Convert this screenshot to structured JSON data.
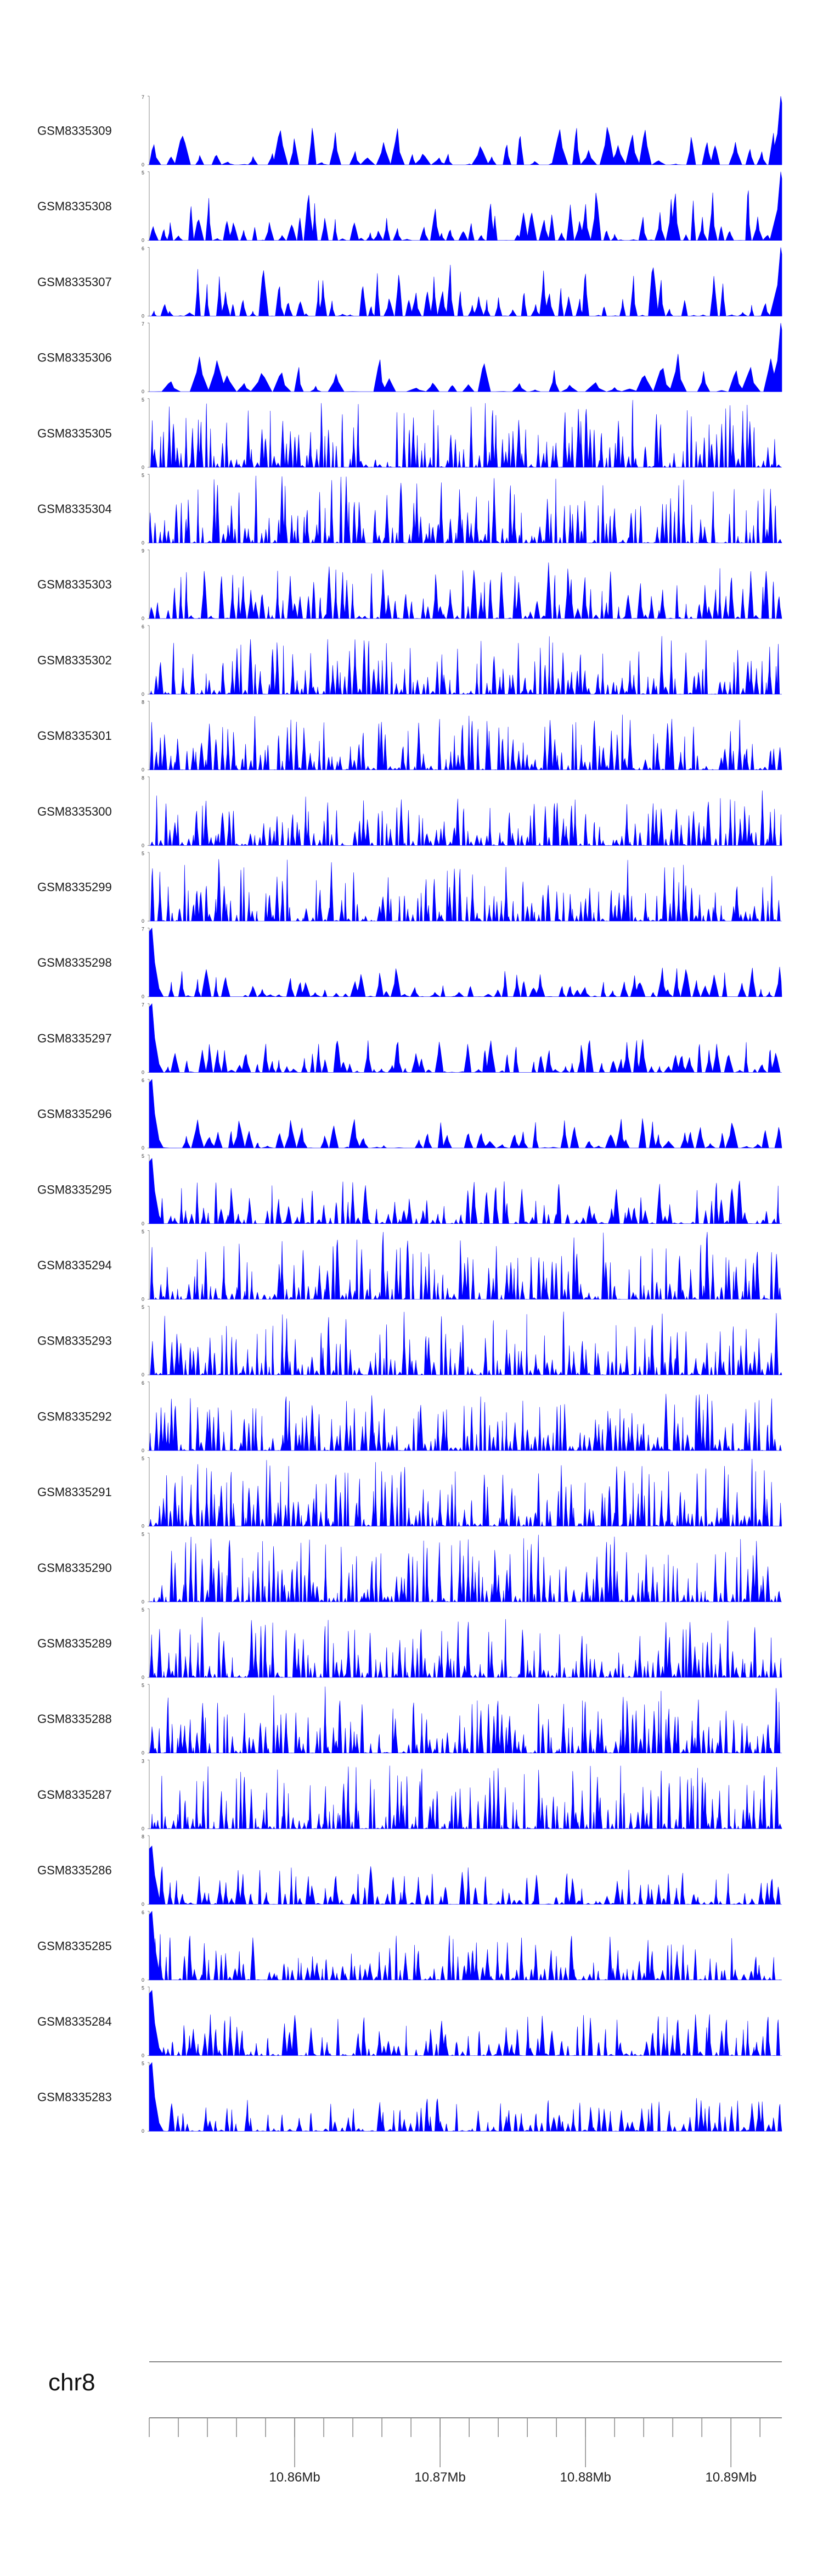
{
  "chart_data": {
    "type": "area",
    "title": "",
    "fill_color": "#0000ff",
    "axis_color": "#888888",
    "chromosome": "chr8",
    "region_mb": [
      10.85,
      10.8935
    ],
    "x_tick_labels": [
      "10.86Mb",
      "10.87Mb",
      "10.88Mb",
      "10.89Mb"
    ],
    "x_tick_values_mb": [
      10.86,
      10.87,
      10.88,
      10.89
    ],
    "tracks": [
      {
        "name": "GSM8335309",
        "ymax": "7",
        "ymin": "0",
        "peak_pos": 1.0,
        "peak_frac": 1.0,
        "n_peaks": 45,
        "intensity": 0.2,
        "seed": 9
      },
      {
        "name": "GSM8335308",
        "ymax": "5",
        "ymin": "0",
        "peak_pos": 1.0,
        "peak_frac": 1.0,
        "n_peaks": 70,
        "intensity": 0.35,
        "seed": 8
      },
      {
        "name": "GSM8335307",
        "ymax": "6",
        "ymin": "0",
        "peak_pos": 1.0,
        "peak_frac": 1.0,
        "n_peaks": 70,
        "intensity": 0.35,
        "seed": 7
      },
      {
        "name": "GSM8335306",
        "ymax": "7",
        "ymin": "0",
        "peak_pos": 1.0,
        "peak_frac": 1.0,
        "n_peaks": 35,
        "intensity": 0.22,
        "seed": 6
      },
      {
        "name": "GSM8335305",
        "ymax": "5",
        "ymin": "0",
        "peak_pos": -1,
        "peak_frac": 0,
        "n_peaks": 150,
        "intensity": 0.6,
        "seed": 5
      },
      {
        "name": "GSM8335304",
        "ymax": "5",
        "ymin": "0",
        "peak_pos": -1,
        "peak_frac": 0,
        "n_peaks": 150,
        "intensity": 0.65,
        "seed": 4
      },
      {
        "name": "GSM8335303",
        "ymax": "9",
        "ymin": "0",
        "peak_pos": -1,
        "peak_frac": 0,
        "n_peaks": 110,
        "intensity": 0.4,
        "seed": 3
      },
      {
        "name": "GSM8335302",
        "ymax": "6",
        "ymin": "0",
        "peak_pos": -1,
        "peak_frac": 0,
        "n_peaks": 140,
        "intensity": 0.45,
        "seed": 2
      },
      {
        "name": "GSM8335301",
        "ymax": "8",
        "ymin": "0",
        "peak_pos": -1,
        "peak_frac": 0,
        "n_peaks": 140,
        "intensity": 0.4,
        "seed": 1
      },
      {
        "name": "GSM8335300",
        "ymax": "8",
        "ymin": "0",
        "peak_pos": -1,
        "peak_frac": 0,
        "n_peaks": 140,
        "intensity": 0.38,
        "seed": 30
      },
      {
        "name": "GSM8335299",
        "ymax": "5",
        "ymin": "0",
        "peak_pos": -1,
        "peak_frac": 0,
        "n_peaks": 150,
        "intensity": 0.45,
        "seed": 29
      },
      {
        "name": "GSM8335298",
        "ymax": "7",
        "ymin": "0",
        "peak_pos": 0.0,
        "peak_frac": 1.0,
        "n_peaks": 70,
        "intensity": 0.1,
        "seed": 28
      },
      {
        "name": "GSM8335297",
        "ymax": "7",
        "ymin": "0",
        "peak_pos": 0.0,
        "peak_frac": 1.0,
        "n_peaks": 80,
        "intensity": 0.14,
        "seed": 27
      },
      {
        "name": "GSM8335296",
        "ymax": "6",
        "ymin": "0",
        "peak_pos": 0.0,
        "peak_frac": 1.0,
        "n_peaks": 60,
        "intensity": 0.14,
        "seed": 26
      },
      {
        "name": "GSM8335295",
        "ymax": "5",
        "ymin": "0",
        "peak_pos": 0.0,
        "peak_frac": 0.95,
        "n_peaks": 110,
        "intensity": 0.28,
        "seed": 25
      },
      {
        "name": "GSM8335294",
        "ymax": "5",
        "ymin": "0",
        "peak_pos": -1,
        "peak_frac": 0,
        "n_peaks": 150,
        "intensity": 0.55,
        "seed": 24
      },
      {
        "name": "GSM8335293",
        "ymax": "5",
        "ymin": "0",
        "peak_pos": -1,
        "peak_frac": 0,
        "n_peaks": 150,
        "intensity": 0.55,
        "seed": 23
      },
      {
        "name": "GSM8335292",
        "ymax": "6",
        "ymin": "0",
        "peak_pos": -1,
        "peak_frac": 0,
        "n_peaks": 150,
        "intensity": 0.5,
        "seed": 22
      },
      {
        "name": "GSM8335291",
        "ymax": "5",
        "ymin": "0",
        "peak_pos": -1,
        "peak_frac": 0,
        "n_peaks": 160,
        "intensity": 0.55,
        "seed": 21
      },
      {
        "name": "GSM8335290",
        "ymax": "5",
        "ymin": "0",
        "peak_pos": -1,
        "peak_frac": 0,
        "n_peaks": 160,
        "intensity": 0.6,
        "seed": 20
      },
      {
        "name": "GSM8335289",
        "ymax": "5",
        "ymin": "0",
        "peak_pos": -1,
        "peak_frac": 0,
        "n_peaks": 150,
        "intensity": 0.5,
        "seed": 19
      },
      {
        "name": "GSM8335288",
        "ymax": "5",
        "ymin": "0",
        "peak_pos": -1,
        "peak_frac": 0,
        "n_peaks": 150,
        "intensity": 0.5,
        "seed": 18
      },
      {
        "name": "GSM8335287",
        "ymax": "3",
        "ymin": "0",
        "peak_pos": -1,
        "peak_frac": 0,
        "n_peaks": 170,
        "intensity": 0.6,
        "seed": 17
      },
      {
        "name": "GSM8335286",
        "ymax": "8",
        "ymin": "0",
        "peak_pos": 0.0,
        "peak_frac": 0.85,
        "n_peaks": 110,
        "intensity": 0.22,
        "seed": 16
      },
      {
        "name": "GSM8335285",
        "ymax": "6",
        "ymin": "0",
        "peak_pos": 0.0,
        "peak_frac": 1.0,
        "n_peaks": 130,
        "intensity": 0.3,
        "seed": 15
      },
      {
        "name": "GSM8335284",
        "ymax": "5",
        "ymin": "0",
        "peak_pos": 0.0,
        "peak_frac": 0.95,
        "n_peaks": 120,
        "intensity": 0.25,
        "seed": 14
      },
      {
        "name": "GSM8335283",
        "ymax": "5",
        "ymin": "0",
        "peak_pos": 0.0,
        "peak_frac": 1.0,
        "n_peaks": 120,
        "intensity": 0.14,
        "seed": 13
      }
    ]
  }
}
